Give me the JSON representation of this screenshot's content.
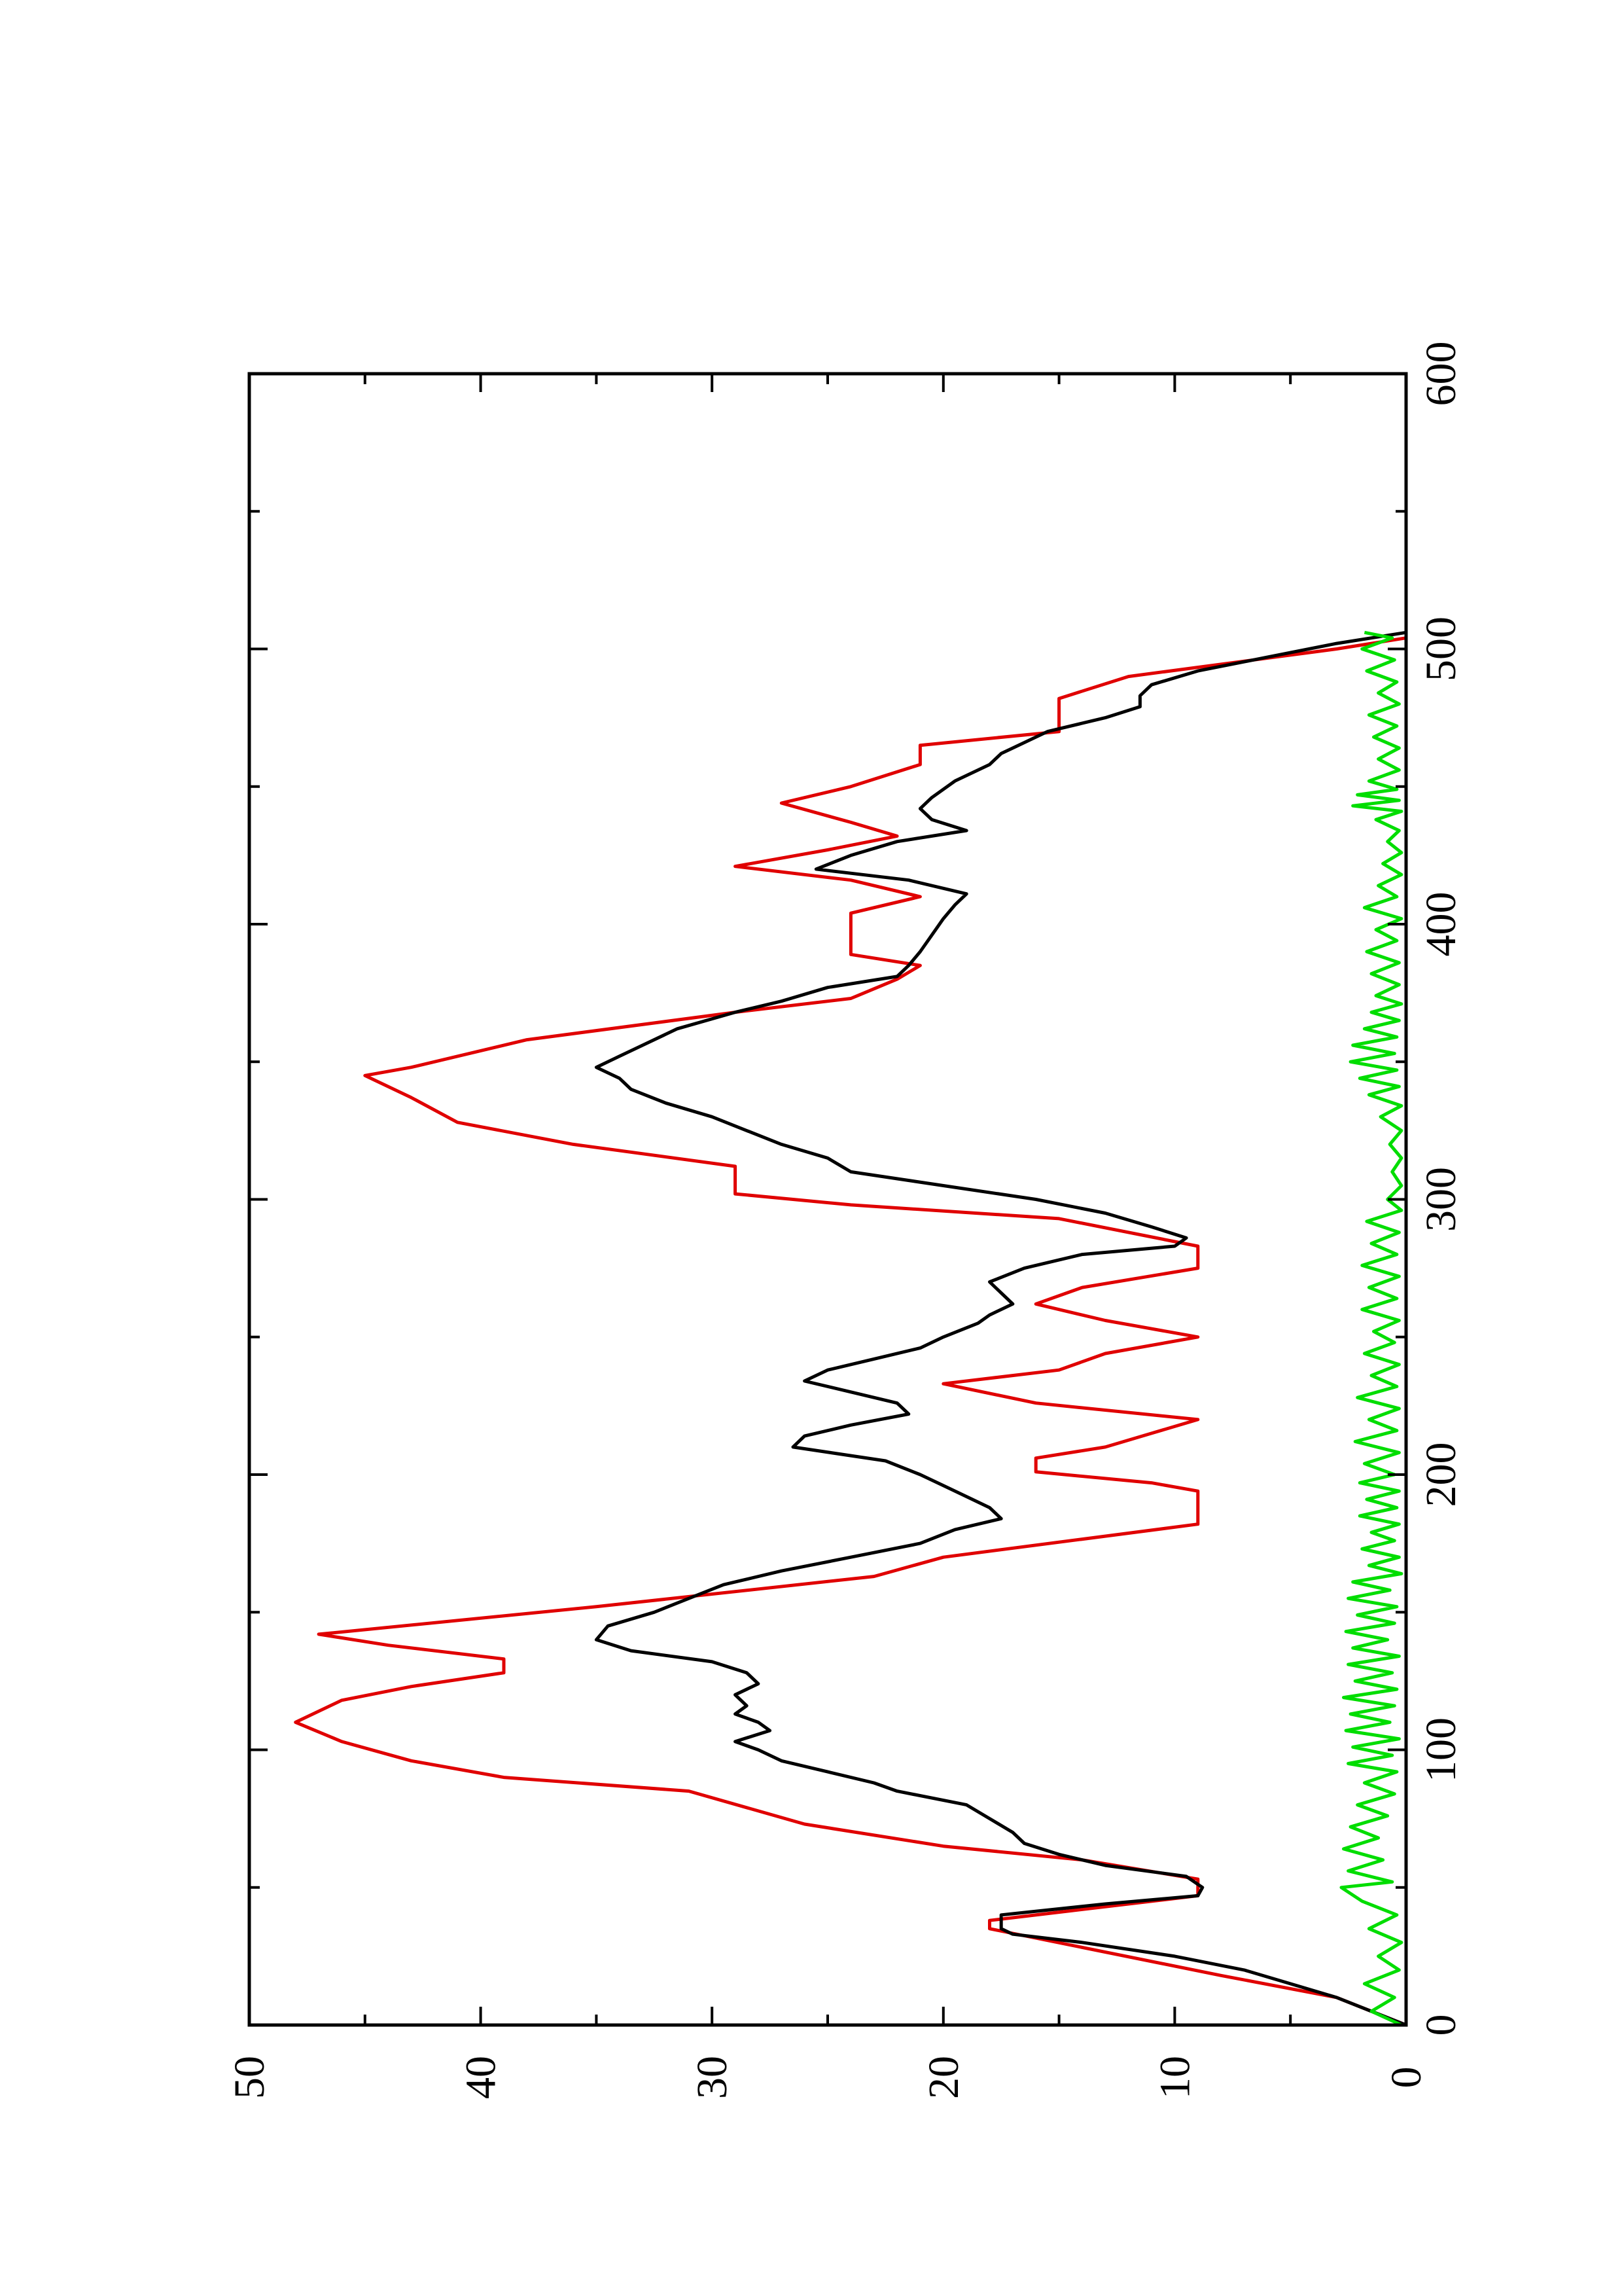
{
  "chart_data": {
    "type": "line",
    "orientation": "rotated 90° counter-clockwise (x axis runs vertically, y axis horizontally)",
    "xlim": [
      0,
      600
    ],
    "ylim": [
      0,
      50
    ],
    "x_ticks": [
      "0",
      "100",
      "200",
      "300",
      "400",
      "500",
      "600"
    ],
    "y_ticks": [
      "0",
      "10",
      "20",
      "30",
      "40",
      "50"
    ],
    "x_minor_step": 50,
    "y_minor_step": 5,
    "grid": false,
    "legend": "none",
    "series": [
      {
        "color": "#e00000",
        "style": "step",
        "points": [
          [
            0,
            0
          ],
          [
            10,
            3
          ],
          [
            18,
            8
          ],
          [
            35,
            18
          ],
          [
            38,
            18
          ],
          [
            47,
            9
          ],
          [
            53,
            9
          ],
          [
            60,
            14
          ],
          [
            65,
            20
          ],
          [
            73,
            26
          ],
          [
            85,
            31
          ],
          [
            90,
            39
          ],
          [
            96,
            43
          ],
          [
            103,
            46
          ],
          [
            110,
            48
          ],
          [
            118,
            46
          ],
          [
            123,
            43
          ],
          [
            128,
            39
          ],
          [
            133,
            39
          ],
          [
            138,
            44
          ],
          [
            142,
            47
          ],
          [
            152,
            35
          ],
          [
            163,
            23
          ],
          [
            170,
            20
          ],
          [
            182,
            9
          ],
          [
            194,
            9
          ],
          [
            197,
            11
          ],
          [
            201,
            16
          ],
          [
            206,
            16
          ],
          [
            210,
            13
          ],
          [
            215,
            11
          ],
          [
            220,
            9
          ],
          [
            226,
            16
          ],
          [
            233,
            20
          ],
          [
            238,
            15
          ],
          [
            244,
            13
          ],
          [
            250,
            9
          ],
          [
            256,
            13
          ],
          [
            262,
            16
          ],
          [
            268,
            14
          ],
          [
            275,
            9
          ],
          [
            283,
            9
          ],
          [
            293,
            15
          ],
          [
            298,
            24
          ],
          [
            302,
            29
          ],
          [
            312,
            29
          ],
          [
            320,
            36
          ],
          [
            328,
            41
          ],
          [
            337,
            43
          ],
          [
            345,
            45
          ],
          [
            348,
            43
          ],
          [
            358,
            38
          ],
          [
            368,
            29
          ],
          [
            373,
            24
          ],
          [
            380,
            22
          ],
          [
            385,
            21
          ],
          [
            389,
            24
          ],
          [
            404,
            24
          ],
          [
            410,
            21
          ],
          [
            416,
            24
          ],
          [
            421,
            29
          ],
          [
            427,
            25
          ],
          [
            432,
            22
          ],
          [
            437,
            24
          ],
          [
            444,
            27
          ],
          [
            450,
            24
          ],
          [
            458,
            21
          ],
          [
            465,
            21
          ],
          [
            470,
            15
          ],
          [
            482,
            15
          ],
          [
            490,
            12
          ],
          [
            500,
            3
          ],
          [
            504,
            0
          ]
        ]
      },
      {
        "color": "#000000",
        "style": "line",
        "points": [
          [
            0,
            0
          ],
          [
            5,
            1.5
          ],
          [
            10,
            3
          ],
          [
            15,
            5
          ],
          [
            20,
            7
          ],
          [
            25,
            10
          ],
          [
            30,
            14
          ],
          [
            33,
            17
          ],
          [
            35,
            17.5
          ],
          [
            40,
            17.5
          ],
          [
            44,
            13
          ],
          [
            47,
            9
          ],
          [
            50,
            8.8
          ],
          [
            54,
            9.5
          ],
          [
            58,
            13
          ],
          [
            62,
            15
          ],
          [
            66,
            16.5
          ],
          [
            70,
            17
          ],
          [
            75,
            18
          ],
          [
            80,
            19
          ],
          [
            85,
            22
          ],
          [
            88,
            23
          ],
          [
            92,
            25
          ],
          [
            96,
            27
          ],
          [
            100,
            28
          ],
          [
            103,
            29
          ],
          [
            107,
            27.5
          ],
          [
            110,
            28
          ],
          [
            113,
            29
          ],
          [
            116,
            28.5
          ],
          [
            120,
            29
          ],
          [
            124,
            28
          ],
          [
            128,
            28.5
          ],
          [
            132,
            30
          ],
          [
            136,
            33.5
          ],
          [
            140,
            35
          ],
          [
            145,
            34.5
          ],
          [
            150,
            32.5
          ],
          [
            155,
            31
          ],
          [
            160,
            29.5
          ],
          [
            165,
            27
          ],
          [
            170,
            24
          ],
          [
            175,
            21
          ],
          [
            180,
            19.5
          ],
          [
            184,
            17.5
          ],
          [
            188,
            18
          ],
          [
            192,
            19
          ],
          [
            196,
            20
          ],
          [
            200,
            21
          ],
          [
            205,
            22.5
          ],
          [
            210,
            26.5
          ],
          [
            214,
            26
          ],
          [
            218,
            24
          ],
          [
            222,
            21.5
          ],
          [
            226,
            22
          ],
          [
            230,
            24
          ],
          [
            234,
            26
          ],
          [
            238,
            25
          ],
          [
            242,
            23
          ],
          [
            246,
            21
          ],
          [
            250,
            20
          ],
          [
            255,
            18.5
          ],
          [
            258,
            18
          ],
          [
            262,
            17
          ],
          [
            266,
            17.5
          ],
          [
            270,
            18
          ],
          [
            275,
            16.5
          ],
          [
            280,
            14
          ],
          [
            283,
            10
          ],
          [
            286,
            9.5
          ],
          [
            290,
            11
          ],
          [
            295,
            13
          ],
          [
            300,
            16
          ],
          [
            305,
            20
          ],
          [
            310,
            24
          ],
          [
            315,
            25
          ],
          [
            320,
            27
          ],
          [
            325,
            28.5
          ],
          [
            330,
            30
          ],
          [
            335,
            32
          ],
          [
            340,
            33.5
          ],
          [
            344,
            34
          ],
          [
            348,
            35
          ],
          [
            352,
            34
          ],
          [
            356,
            33
          ],
          [
            362,
            31.5
          ],
          [
            368,
            29
          ],
          [
            372,
            27
          ],
          [
            377,
            25
          ],
          [
            381,
            22
          ],
          [
            385,
            21.5
          ],
          [
            390,
            21
          ],
          [
            396,
            20.5
          ],
          [
            402,
            20
          ],
          [
            407,
            19.5
          ],
          [
            411,
            19
          ],
          [
            416,
            21.5
          ],
          [
            420,
            25.5
          ],
          [
            425,
            24
          ],
          [
            430,
            22
          ],
          [
            434,
            19
          ],
          [
            438,
            20.5
          ],
          [
            442,
            21
          ],
          [
            446,
            20.5
          ],
          [
            452,
            19.5
          ],
          [
            458,
            18
          ],
          [
            462,
            17.5
          ],
          [
            466,
            16.5
          ],
          [
            470,
            15.5
          ],
          [
            475,
            13
          ],
          [
            479,
            11.5
          ],
          [
            483,
            11.5
          ],
          [
            487,
            11
          ],
          [
            492,
            9
          ],
          [
            497,
            6
          ],
          [
            502,
            3
          ],
          [
            506,
            0
          ]
        ]
      },
      {
        "color": "#00dd00",
        "style": "line",
        "points": [
          [
            0,
            0.2
          ],
          [
            5,
            1.5
          ],
          [
            10,
            0.5
          ],
          [
            15,
            1.8
          ],
          [
            20,
            0.3
          ],
          [
            25,
            1.2
          ],
          [
            30,
            0.2
          ],
          [
            35,
            1.6
          ],
          [
            40,
            0.4
          ],
          [
            45,
            1.9
          ],
          [
            50,
            2.8
          ],
          [
            52,
            0.6
          ],
          [
            56,
            2.5
          ],
          [
            60,
            1.0
          ],
          [
            64,
            2.7
          ],
          [
            68,
            1.2
          ],
          [
            72,
            2.4
          ],
          [
            76,
            0.8
          ],
          [
            80,
            2.1
          ],
          [
            84,
            0.5
          ],
          [
            88,
            1.8
          ],
          [
            92,
            0.4
          ],
          [
            95,
            2.5
          ],
          [
            98,
            0.6
          ],
          [
            101,
            2.3
          ],
          [
            104,
            0.3
          ],
          [
            107,
            2.6
          ],
          [
            110,
            0.7
          ],
          [
            113,
            2.4
          ],
          [
            116,
            0.5
          ],
          [
            119,
            2.7
          ],
          [
            122,
            0.4
          ],
          [
            125,
            2.2
          ],
          [
            128,
            0.6
          ],
          [
            131,
            2.5
          ],
          [
            134,
            0.3
          ],
          [
            137,
            2.3
          ],
          [
            140,
            0.8
          ],
          [
            143,
            2.6
          ],
          [
            146,
            0.5
          ],
          [
            149,
            2.1
          ],
          [
            152,
            0.4
          ],
          [
            155,
            2.5
          ],
          [
            158,
            0.7
          ],
          [
            161,
            2.3
          ],
          [
            164,
            0.2
          ],
          [
            167,
            1.6
          ],
          [
            170,
            0.3
          ],
          [
            173,
            1.9
          ],
          [
            176,
            0.5
          ],
          [
            179,
            1.5
          ],
          [
            182,
            0.3
          ],
          [
            185,
            2.0
          ],
          [
            188,
            0.4
          ],
          [
            191,
            1.7
          ],
          [
            194,
            0.3
          ],
          [
            197,
            2.0
          ],
          [
            200,
            0.5
          ],
          [
            204,
            1.8
          ],
          [
            208,
            0.3
          ],
          [
            212,
            2.2
          ],
          [
            216,
            0.4
          ],
          [
            220,
            1.6
          ],
          [
            224,
            0.3
          ],
          [
            228,
            2.1
          ],
          [
            232,
            0.4
          ],
          [
            236,
            1.5
          ],
          [
            240,
            0.3
          ],
          [
            244,
            1.8
          ],
          [
            248,
            0.5
          ],
          [
            252,
            1.4
          ],
          [
            256,
            0.3
          ],
          [
            260,
            1.9
          ],
          [
            264,
            0.4
          ],
          [
            268,
            1.6
          ],
          [
            272,
            0.3
          ],
          [
            276,
            1.9
          ],
          [
            280,
            0.4
          ],
          [
            284,
            1.5
          ],
          [
            288,
            0.3
          ],
          [
            292,
            1.7
          ],
          [
            296,
            0.2
          ],
          [
            300,
            0.8
          ],
          [
            305,
            0.2
          ],
          [
            310,
            0.6
          ],
          [
            315,
            0.2
          ],
          [
            320,
            0.7
          ],
          [
            325,
            0.2
          ],
          [
            330,
            1.1
          ],
          [
            334,
            0.2
          ],
          [
            338,
            1.6
          ],
          [
            341,
            0.3
          ],
          [
            344,
            2.0
          ],
          [
            347,
            0.4
          ],
          [
            350,
            2.4
          ],
          [
            353,
            0.5
          ],
          [
            356,
            2.3
          ],
          [
            359,
            0.4
          ],
          [
            362,
            1.8
          ],
          [
            365,
            0.3
          ],
          [
            368,
            1.5
          ],
          [
            371,
            0.2
          ],
          [
            374,
            1.3
          ],
          [
            378,
            0.3
          ],
          [
            382,
            1.5
          ],
          [
            386,
            0.3
          ],
          [
            390,
            1.7
          ],
          [
            394,
            0.4
          ],
          [
            398,
            1.3
          ],
          [
            402,
            0.2
          ],
          [
            406,
            1.8
          ],
          [
            410,
            0.4
          ],
          [
            414,
            1.2
          ],
          [
            418,
            0.2
          ],
          [
            422,
            1.0
          ],
          [
            426,
            0.2
          ],
          [
            430,
            0.8
          ],
          [
            434,
            0.3
          ],
          [
            438,
            1.3
          ],
          [
            441,
            0.2
          ],
          [
            443,
            2.3
          ],
          [
            445,
            0.3
          ],
          [
            447,
            2.1
          ],
          [
            449,
            0.4
          ],
          [
            452,
            1.6
          ],
          [
            456,
            0.3
          ],
          [
            460,
            1.2
          ],
          [
            464,
            0.3
          ],
          [
            468,
            1.4
          ],
          [
            472,
            0.4
          ],
          [
            476,
            1.6
          ],
          [
            480,
            0.3
          ],
          [
            484,
            1.2
          ],
          [
            488,
            0.4
          ],
          [
            492,
            1.7
          ],
          [
            496,
            0.5
          ],
          [
            500,
            1.9
          ],
          [
            504,
            0.6
          ],
          [
            506,
            1.8
          ]
        ]
      }
    ]
  }
}
